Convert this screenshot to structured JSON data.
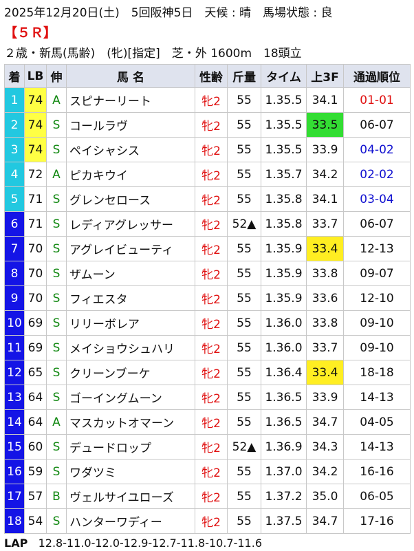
{
  "header": {
    "info": "2025年12月20日(土)　5回阪神5日　天候 : 晴　馬場状態 : 良",
    "race": "【５Ｒ】",
    "conditions": "２歳・新馬(馬齢)　(牝)[指定]　芝・外 1600m　18頭立"
  },
  "table": {
    "columns": [
      "着",
      "LB",
      "伸",
      "馬 名",
      "性齢",
      "斤量",
      "タイム",
      "上3F",
      "通過順位"
    ],
    "rows": [
      [
        "1",
        "74",
        "A",
        "スピナーリート",
        "牝2",
        "55",
        "1.35.5",
        "34.1",
        "01-01"
      ],
      [
        "2",
        "74",
        "S",
        "コールラヴ",
        "牝2",
        "55",
        "1.35.5",
        "33.5",
        "06-07"
      ],
      [
        "3",
        "74",
        "S",
        "ペイシャシス",
        "牝2",
        "55",
        "1.35.5",
        "33.9",
        "04-02"
      ],
      [
        "4",
        "72",
        "A",
        "ピカキウイ",
        "牝2",
        "55",
        "1.35.7",
        "34.2",
        "02-02"
      ],
      [
        "5",
        "71",
        "S",
        "グレンセロース",
        "牝2",
        "55",
        "1.35.8",
        "34.1",
        "03-04"
      ],
      [
        "6",
        "71",
        "S",
        "レディアグレッサー",
        "牝2",
        "52▲",
        "1.35.8",
        "33.7",
        "06-07"
      ],
      [
        "7",
        "70",
        "S",
        "アグレイビューティ",
        "牝2",
        "55",
        "1.35.9",
        "33.4",
        "12-13"
      ],
      [
        "8",
        "70",
        "S",
        "ザムーン",
        "牝2",
        "55",
        "1.35.9",
        "33.8",
        "09-07"
      ],
      [
        "9",
        "70",
        "S",
        "フィエスタ",
        "牝2",
        "55",
        "1.35.9",
        "33.6",
        "12-10"
      ],
      [
        "10",
        "69",
        "S",
        "リリーボレア",
        "牝2",
        "55",
        "1.36.0",
        "33.8",
        "09-10"
      ],
      [
        "11",
        "69",
        "S",
        "メイショウシュハリ",
        "牝2",
        "55",
        "1.36.0",
        "33.7",
        "09-10"
      ],
      [
        "12",
        "65",
        "S",
        "クリーンブーケ",
        "牝2",
        "55",
        "1.36.4",
        "33.4",
        "18-18"
      ],
      [
        "13",
        "64",
        "S",
        "ゴーイングムーン",
        "牝2",
        "55",
        "1.36.5",
        "33.9",
        "14-13"
      ],
      [
        "14",
        "64",
        "A",
        "マスカットオマーン",
        "牝2",
        "55",
        "1.36.5",
        "34.7",
        "04-05"
      ],
      [
        "15",
        "60",
        "S",
        "デュードロップ",
        "牝2",
        "52▲",
        "1.36.9",
        "34.3",
        "14-13"
      ],
      [
        "16",
        "59",
        "S",
        "ワダツミ",
        "牝2",
        "55",
        "1.37.0",
        "34.2",
        "16-16"
      ],
      [
        "17",
        "57",
        "B",
        "ヴェルサイユローズ",
        "牝2",
        "55",
        "1.37.2",
        "35.0",
        "06-05"
      ],
      [
        "18",
        "54",
        "S",
        "ハンターワディー",
        "牝2",
        "55",
        "1.37.5",
        "34.7",
        "17-16"
      ]
    ],
    "rank_bg": [
      "#22c8e0",
      "#22c8e0",
      "#22c8e0",
      "#22c8e0",
      "#22c8e0",
      "#1414e6",
      "#1414e6",
      "#1414e6",
      "#1414e6",
      "#1414e6",
      "#1414e6",
      "#1414e6",
      "#1414e6",
      "#1414e6",
      "#1414e6",
      "#1414e6",
      "#1414e6",
      "#1414e6"
    ],
    "lb_bg": [
      "#ffff44",
      "#ffff44",
      "#ffff44",
      null,
      null,
      null,
      null,
      null,
      null,
      null,
      null,
      null,
      null,
      null,
      null,
      null,
      null,
      null
    ],
    "f3_bg": [
      null,
      "#33dd33",
      null,
      null,
      null,
      null,
      "#ffee22",
      null,
      null,
      null,
      null,
      "#ffee22",
      null,
      null,
      null,
      null,
      null,
      null
    ],
    "pass_color": [
      "#e01010",
      null,
      "#1010d0",
      "#1010d0",
      "#1010d0",
      null,
      null,
      null,
      null,
      null,
      null,
      null,
      null,
      null,
      null,
      null,
      null,
      null
    ]
  },
  "lap": {
    "label": "LAP",
    "value": "12.8-11.0-12.0-12.9-12.7-11.8-10.7-11.6"
  }
}
